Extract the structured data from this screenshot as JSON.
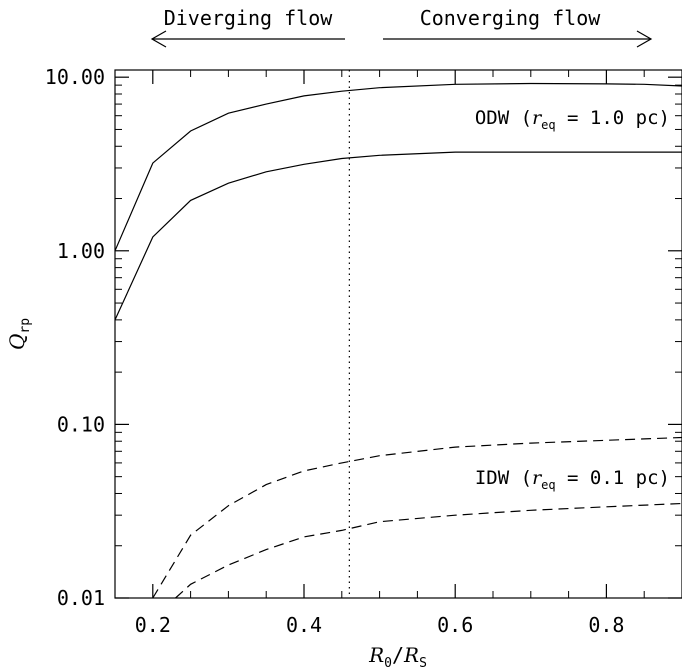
{
  "chart_data": {
    "type": "line",
    "xlabel": {
      "main": "R",
      "sub1": "0",
      "slash": "/",
      "main2": "R",
      "sub2": "S"
    },
    "ylabel": {
      "main": "Q",
      "sub": "rp"
    },
    "xlim": [
      0.15,
      0.9
    ],
    "ylim": [
      0.01,
      11.0
    ],
    "y_scale": "log",
    "grid": false,
    "x_ticks": [
      {
        "value": 0.2,
        "label": "0.2"
      },
      {
        "value": 0.4,
        "label": "0.4"
      },
      {
        "value": 0.6,
        "label": "0.6"
      },
      {
        "value": 0.8,
        "label": "0.8"
      }
    ],
    "y_ticks": [
      {
        "value": 0.01,
        "label": "0.01"
      },
      {
        "value": 0.1,
        "label": "0.10"
      },
      {
        "value": 1.0,
        "label": "1.00"
      },
      {
        "value": 10.0,
        "label": "10.00"
      }
    ],
    "vline": {
      "x": 0.46,
      "style": "dotted"
    },
    "flow_labels": {
      "left": "Diverging flow",
      "right": "Converging flow"
    },
    "series": [
      {
        "group": "ODW",
        "style": "solid",
        "x": [
          0.15,
          0.2,
          0.25,
          0.3,
          0.35,
          0.4,
          0.45,
          0.5,
          0.6,
          0.7,
          0.8,
          0.85,
          0.9
        ],
        "y": [
          1.0,
          3.2,
          4.9,
          6.2,
          7.0,
          7.8,
          8.3,
          8.7,
          9.1,
          9.2,
          9.15,
          9.1,
          8.9
        ]
      },
      {
        "group": "ODW",
        "style": "solid",
        "x": [
          0.15,
          0.2,
          0.25,
          0.3,
          0.35,
          0.4,
          0.45,
          0.5,
          0.6,
          0.7,
          0.8,
          0.9
        ],
        "y": [
          0.4,
          1.2,
          1.95,
          2.45,
          2.85,
          3.15,
          3.4,
          3.55,
          3.7,
          3.7,
          3.7,
          3.7
        ]
      },
      {
        "group": "IDW",
        "style": "dashed",
        "x": [
          0.2,
          0.25,
          0.3,
          0.35,
          0.4,
          0.45,
          0.5,
          0.6,
          0.7,
          0.8,
          0.9
        ],
        "y": [
          0.01,
          0.023,
          0.034,
          0.045,
          0.054,
          0.06,
          0.066,
          0.074,
          0.078,
          0.081,
          0.084
        ]
      },
      {
        "group": "IDW",
        "style": "dashed",
        "x": [
          0.23,
          0.25,
          0.3,
          0.35,
          0.4,
          0.45,
          0.5,
          0.6,
          0.7,
          0.8,
          0.9
        ],
        "y": [
          0.01,
          0.012,
          0.0155,
          0.019,
          0.0225,
          0.0245,
          0.0275,
          0.03,
          0.032,
          0.0335,
          0.035
        ]
      }
    ],
    "annotations": [
      {
        "key": "odw",
        "prefix": "ODW (",
        "var": "r",
        "sub": "eq",
        "suffix": " = 1.0 pc)"
      },
      {
        "key": "idw",
        "prefix": "IDW (",
        "var": "r",
        "sub": "eq",
        "suffix": " = 0.1 pc)"
      }
    ]
  }
}
